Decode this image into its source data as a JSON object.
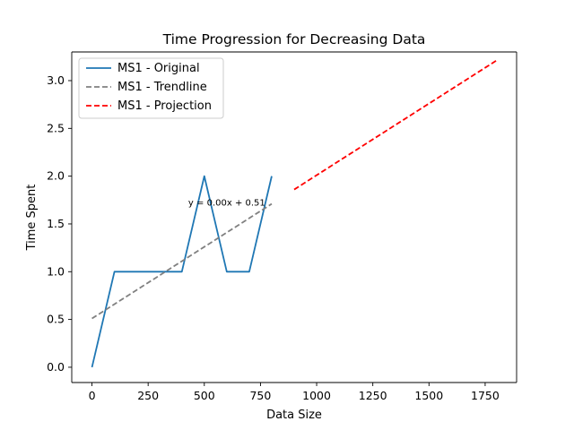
{
  "chart_data": {
    "type": "line",
    "title": "Time Progression for Decreasing Data",
    "xlabel": "Data Size",
    "ylabel": "Time Spent",
    "xlim": [
      -90,
      1890
    ],
    "ylim": [
      -0.16,
      3.3
    ],
    "xticks": [
      0,
      250,
      500,
      750,
      1000,
      1250,
      1500,
      1750
    ],
    "xtick_labels": [
      "0",
      "250",
      "500",
      "750",
      "1000",
      "1250",
      "1500",
      "1750"
    ],
    "yticks": [
      0.0,
      0.5,
      1.0,
      1.5,
      2.0,
      2.5,
      3.0
    ],
    "ytick_labels": [
      "0.0",
      "0.5",
      "1.0",
      "1.5",
      "2.0",
      "2.5",
      "3.0"
    ],
    "grid": false,
    "legend_position": "top-left",
    "series": [
      {
        "name": "MS1 - Original",
        "style": "solid",
        "color": "#1f77b4",
        "x": [
          0,
          100,
          200,
          300,
          400,
          500,
          600,
          700,
          800
        ],
        "y": [
          0,
          1,
          1,
          1,
          1,
          2,
          1,
          1,
          2
        ]
      },
      {
        "name": "MS1 - Trendline",
        "style": "dashed",
        "color": "#808080",
        "x": [
          0,
          800
        ],
        "y": [
          0.51,
          1.71
        ]
      },
      {
        "name": "MS1 - Projection",
        "style": "dashed",
        "color": "#ff0000",
        "x": [
          900,
          1800
        ],
        "y": [
          1.86,
          3.21
        ]
      }
    ],
    "annotations": [
      {
        "text": "y = 0.00x + 0.51",
        "x": 600,
        "y": 1.72
      }
    ]
  }
}
